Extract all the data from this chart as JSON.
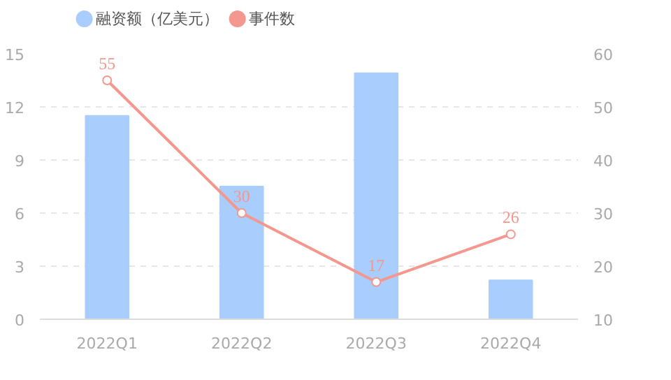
{
  "chart_data": {
    "type": "bar",
    "categories": [
      "2022Q1",
      "2022Q2",
      "2022Q3",
      "2022Q4"
    ],
    "series": [
      {
        "name": "融资额（亿美元）",
        "color": "#a9cdfd",
        "values": [
          11.5,
          7.5,
          13.9,
          2.2
        ]
      },
      {
        "name": "事件数",
        "type": "line",
        "axis": "y2",
        "color": "#f4978e",
        "values": [
          55,
          30,
          17,
          26
        ],
        "value_labels": [
          "55",
          "30",
          "17",
          "26"
        ],
        "marker": "circle"
      }
    ],
    "ylim": [
      0,
      15
    ],
    "yticks": [
      0,
      3,
      6,
      9,
      12,
      15
    ],
    "y2lim": [
      10,
      60
    ],
    "y2ticks": [
      10,
      20,
      30,
      40,
      50,
      60
    ],
    "grid": "y",
    "legend": "top left"
  }
}
